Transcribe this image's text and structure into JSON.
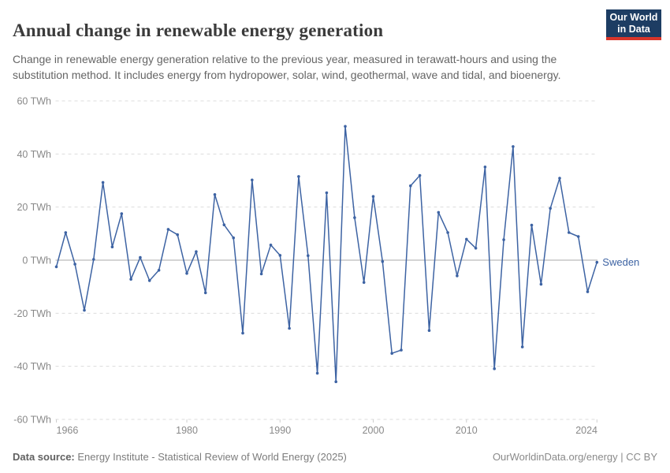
{
  "header": {
    "title": "Annual change in renewable energy generation",
    "subtitle": "Change in renewable energy generation relative to the previous year, measured in terawatt-hours and using the substitution method. It includes energy from hydropower, solar, wind, geothermal, wave and tidal, and bioenergy.",
    "logo": {
      "line1": "Our World",
      "line2": "in Data"
    }
  },
  "chart_data": {
    "type": "line",
    "title": "Annual change in renewable energy generation",
    "entity_label": "Sweden",
    "unit": "TWh",
    "x": [
      1966,
      1967,
      1968,
      1969,
      1970,
      1971,
      1972,
      1973,
      1974,
      1975,
      1976,
      1977,
      1978,
      1979,
      1980,
      1981,
      1982,
      1983,
      1984,
      1985,
      1986,
      1987,
      1988,
      1989,
      1990,
      1991,
      1992,
      1993,
      1994,
      1995,
      1996,
      1997,
      1998,
      1999,
      2000,
      2001,
      2002,
      2003,
      2004,
      2005,
      2006,
      2007,
      2008,
      2009,
      2010,
      2011,
      2012,
      2013,
      2014,
      2015,
      2016,
      2017,
      2018,
      2019,
      2020,
      2021,
      2022,
      2023,
      2024
    ],
    "series": [
      {
        "name": "Sweden",
        "values": [
          -2.5,
          10.4,
          -1.5,
          -18.9,
          0.3,
          29.3,
          5.0,
          17.5,
          -7.2,
          1.0,
          -7.7,
          -3.8,
          11.6,
          9.6,
          -5.0,
          3.2,
          -12.3,
          24.7,
          13.3,
          8.4,
          -27.5,
          30.2,
          -5.2,
          5.7,
          1.8,
          -25.7,
          31.5,
          1.7,
          -42.6,
          25.4,
          -45.8,
          50.4,
          16.0,
          -8.4,
          24.0,
          -0.5,
          -35.1,
          -33.9,
          28.0,
          31.9,
          -26.5,
          18.0,
          10.4,
          -5.9,
          7.9,
          4.5,
          35.1,
          -40.9,
          7.7,
          42.8,
          -32.7,
          13.2,
          -9.1,
          19.5,
          30.9,
          10.4,
          8.9,
          -11.9,
          -0.8
        ]
      }
    ],
    "ylim": [
      -60,
      60
    ],
    "xlim": [
      1966,
      2024
    ],
    "y_ticks": [
      60,
      40,
      20,
      0,
      -20,
      -40,
      -60
    ],
    "x_ticks": [
      1966,
      1980,
      1990,
      2000,
      2010,
      2024
    ],
    "grid": "horizontal-dashed",
    "legend_position": "inline-right-of-last-point"
  },
  "colors": {
    "line": "#3d63a3",
    "entity_label": "#3d63a3",
    "grid": "#dcdcdc",
    "zero_line": "#a8a8a8",
    "tick_label": "#898989",
    "logo_bg": "#1d3d63",
    "logo_accent": "#d8352a"
  },
  "footer": {
    "source_label": "Data source:",
    "source_text": " Energy Institute - Statistical Review of World Energy (2025)",
    "right_text": "OurWorldinData.org/energy | CC BY"
  }
}
